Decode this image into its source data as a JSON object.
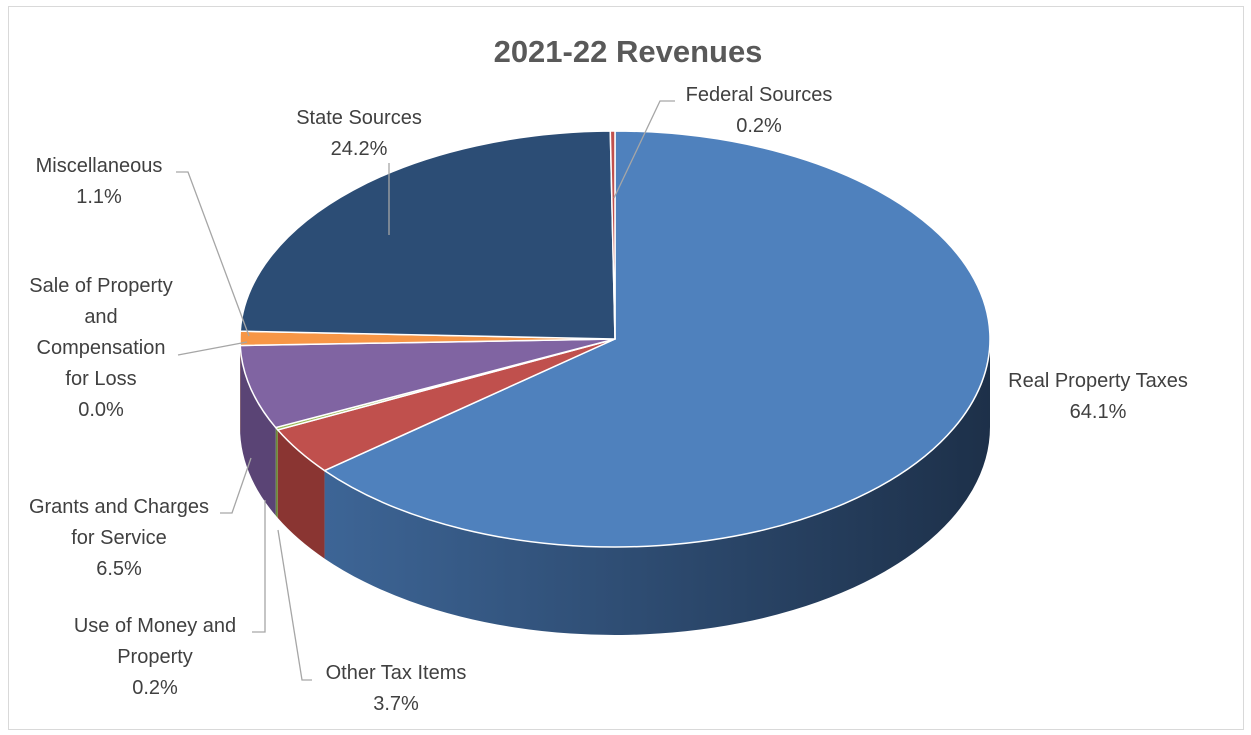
{
  "chart_data": {
    "type": "pie",
    "title": "2021-22 Revenues",
    "slices": [
      {
        "label": "Real Property Taxes",
        "value": 64.1,
        "display": "64.1%",
        "color": "#4f81bd",
        "side": "#2e4a70",
        "label_lines": [
          "Real Property Taxes"
        ]
      },
      {
        "label": "Other Tax Items",
        "value": 3.7,
        "display": "3.7%",
        "color": "#c0504d",
        "side": "#8a3532",
        "label_lines": [
          "Other Tax Items"
        ]
      },
      {
        "label": "Use of Money and Property",
        "value": 0.2,
        "display": "0.2%",
        "color": "#9bbb59",
        "side": "#6b8a3a",
        "label_lines": [
          "Use of Money and",
          "Property"
        ]
      },
      {
        "label": "Grants and Charges for Service",
        "value": 6.5,
        "display": "6.5%",
        "color": "#8064a2",
        "side": "#5a4475",
        "label_lines": [
          "Grants and Charges",
          "for Service"
        ]
      },
      {
        "label": "Sale of Property and Compensation for Loss",
        "value": 0.0,
        "display": "0.0%",
        "color": "#4bacc6",
        "side": "#2f7a8f",
        "label_lines": [
          "Sale of Property",
          "and",
          "Compensation",
          "for Loss"
        ]
      },
      {
        "label": "Miscellaneous",
        "value": 1.1,
        "display": "1.1%",
        "color": "#f79646",
        "side": "#b86a2a",
        "label_lines": [
          "Miscellaneous"
        ]
      },
      {
        "label": "State Sources",
        "value": 24.2,
        "display": "24.2%",
        "color": "#2c4d75",
        "side": "#1e3552",
        "label_lines": [
          "State Sources"
        ]
      },
      {
        "label": "Federal Sources",
        "value": 0.2,
        "display": "0.2%",
        "color": "#c0504d",
        "side": "#8a3532",
        "label_lines": [
          "Federal Sources"
        ]
      }
    ],
    "legend": "none",
    "style": "3d-pie"
  }
}
